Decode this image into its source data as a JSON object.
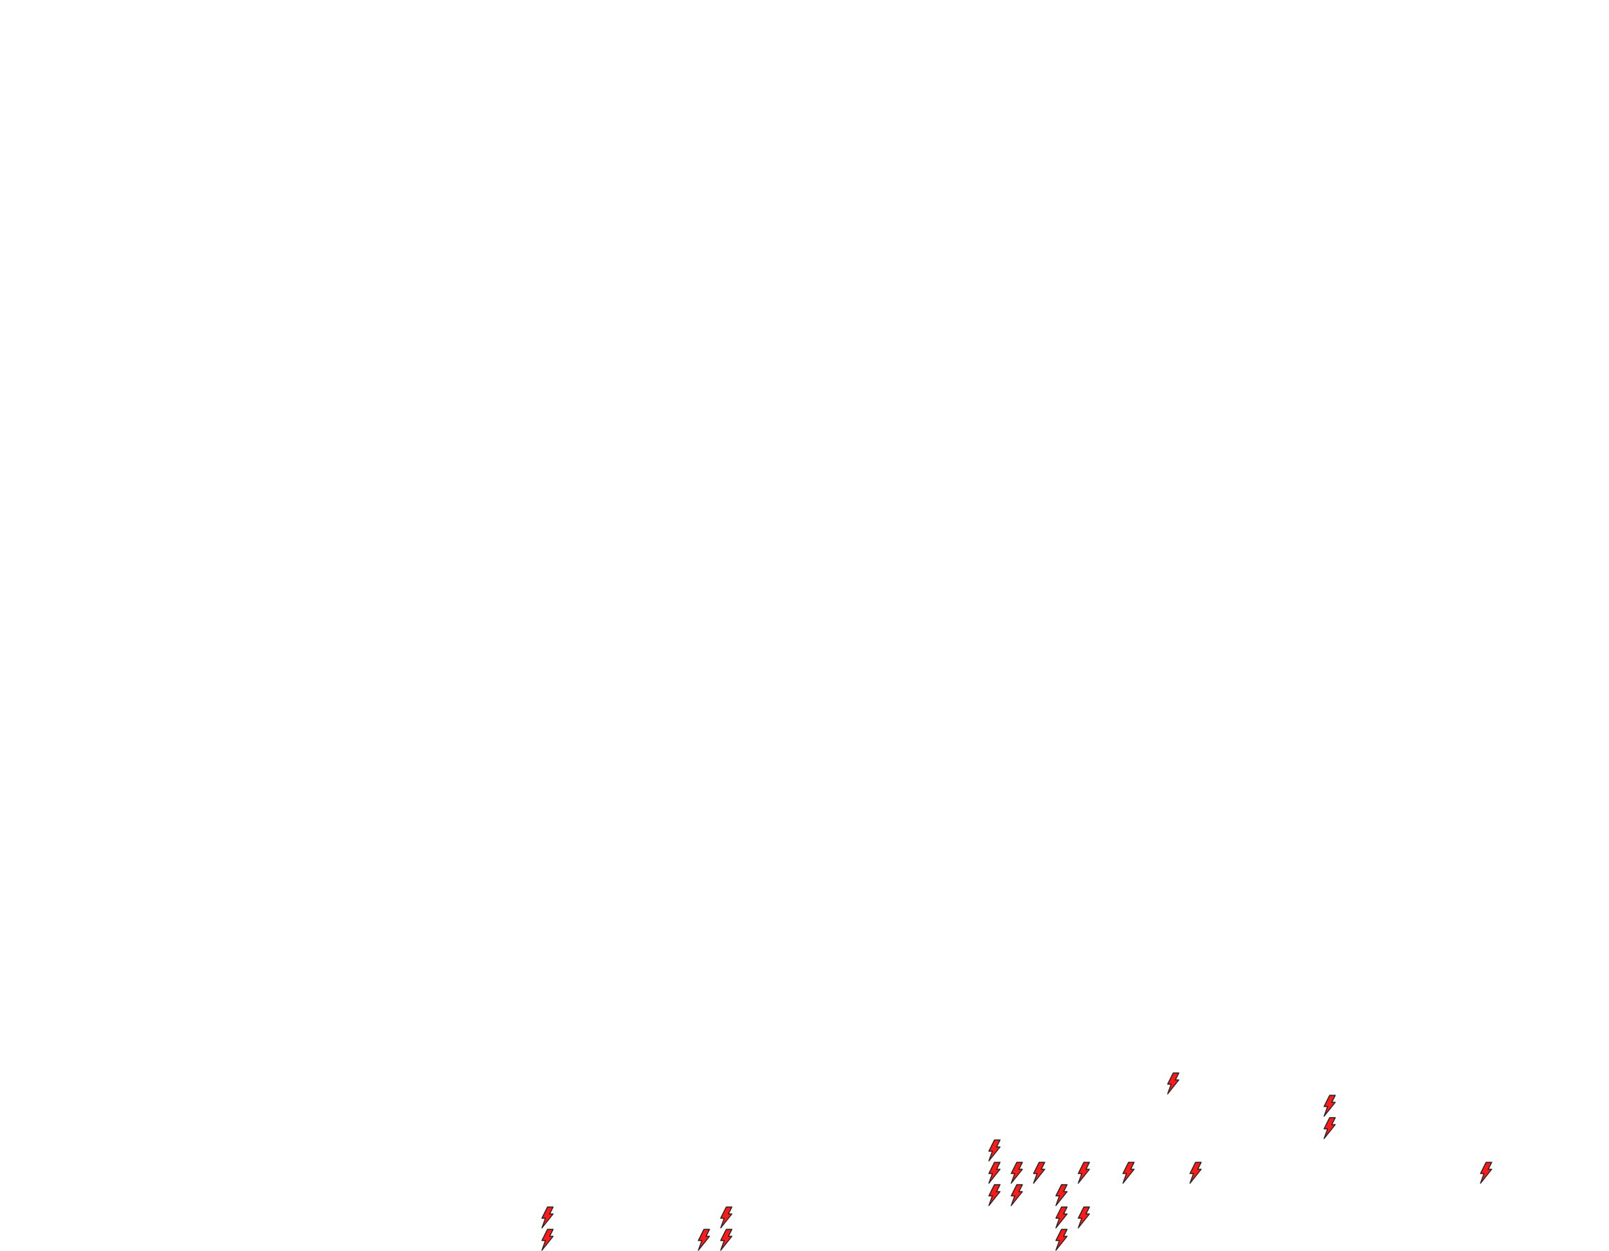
{
  "canvas": {
    "background": "#ffffff"
  },
  "markers": {
    "icon": "lightning-bolt-icon",
    "fill_color": "#ff1a1a",
    "stroke_color": "#222222",
    "count": 22
  }
}
